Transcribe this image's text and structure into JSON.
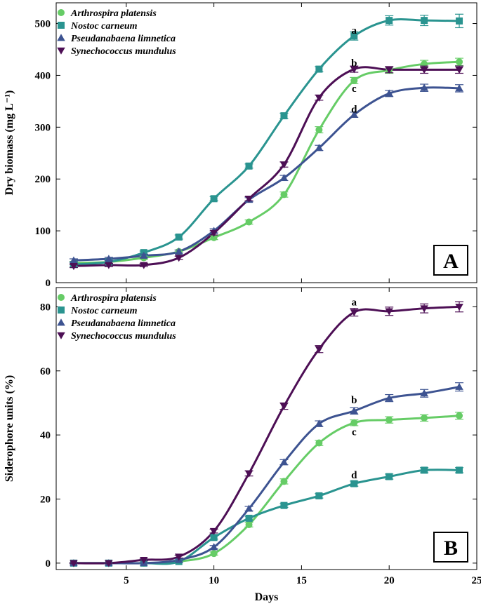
{
  "chart_data": [
    {
      "type": "line",
      "panel_label": "A",
      "ylabel": "Dry biomass (mg L⁻¹)",
      "xlabel": "",
      "xlim": [
        1,
        25
      ],
      "ylim": [
        0,
        540
      ],
      "yticks": [
        0,
        100,
        200,
        300,
        400,
        500
      ],
      "xticks": [
        5,
        10,
        15,
        20,
        25
      ],
      "show_xtick_labels": false,
      "legend_position": "top-left",
      "x": [
        2,
        4,
        6,
        8,
        10,
        12,
        14,
        16,
        18,
        20,
        22,
        24
      ],
      "series": [
        {
          "name": "Arthrospira platensis",
          "color": "#66cc66",
          "marker": "circle",
          "values": [
            38,
            40,
            48,
            60,
            87,
            117,
            170,
            295,
            390,
            410,
            422,
            426
          ],
          "errors": [
            3,
            3,
            3,
            3,
            4,
            4,
            5,
            6,
            6,
            6,
            7,
            7
          ]
        },
        {
          "name": "Nostoc carneum",
          "color": "#2a9490",
          "marker": "square",
          "values": [
            35,
            40,
            58,
            88,
            162,
            225,
            322,
            412,
            476,
            506,
            506,
            505
          ],
          "errors": [
            3,
            3,
            3,
            4,
            4,
            4,
            5,
            5,
            8,
            9,
            10,
            13
          ]
        },
        {
          "name": "Pseudanabaena limnetica",
          "color": "#3d5391",
          "marker": "triangle-up",
          "values": [
            43,
            46,
            52,
            60,
            100,
            160,
            202,
            260,
            324,
            365,
            376,
            375
          ],
          "errors": [
            3,
            3,
            3,
            3,
            4,
            4,
            5,
            5,
            5,
            6,
            7,
            7
          ]
        },
        {
          "name": "Synechococcus mundulus",
          "color": "#4d0f55",
          "marker": "triangle-down",
          "values": [
            32,
            34,
            34,
            48,
            96,
            162,
            228,
            357,
            412,
            411,
            411,
            411
          ],
          "errors": [
            3,
            3,
            3,
            3,
            4,
            4,
            5,
            5,
            6,
            6,
            7,
            7
          ]
        }
      ],
      "annotations": [
        {
          "text": "a",
          "x": 18,
          "y": 487
        },
        {
          "text": "b",
          "x": 18,
          "y": 424
        },
        {
          "text": "c",
          "x": 18,
          "y": 375
        },
        {
          "text": "d",
          "x": 18,
          "y": 335
        }
      ]
    },
    {
      "type": "line",
      "panel_label": "B",
      "ylabel": "Siderophore units (%)",
      "xlabel": "Days",
      "xlim": [
        1,
        25
      ],
      "ylim": [
        -2,
        86
      ],
      "yticks": [
        0,
        20,
        40,
        60,
        80
      ],
      "xticks": [
        5,
        10,
        15,
        20,
        25
      ],
      "show_xtick_labels": true,
      "legend_position": "top-left",
      "x": [
        2,
        4,
        6,
        8,
        10,
        12,
        14,
        16,
        18,
        20,
        22,
        24
      ],
      "series": [
        {
          "name": "Arthrospira platensis",
          "color": "#66cc66",
          "marker": "circle",
          "values": [
            0,
            0,
            0,
            0.5,
            3,
            12,
            25.5,
            37.5,
            43.8,
            44.7,
            45.3,
            46
          ],
          "errors": [
            0.2,
            0.2,
            0.2,
            0.3,
            0.5,
            0.7,
            0.8,
            0.8,
            0.9,
            1,
            1,
            1.1
          ]
        },
        {
          "name": "Nostoc carneum",
          "color": "#2a9490",
          "marker": "square",
          "values": [
            0,
            0,
            0,
            0.5,
            8,
            14,
            18,
            21,
            24.8,
            27,
            29,
            29
          ],
          "errors": [
            0.2,
            0.2,
            0.2,
            0.3,
            0.5,
            0.6,
            0.6,
            0.7,
            0.8,
            0.8,
            0.8,
            0.8
          ]
        },
        {
          "name": "Pseudanabaena limnetica",
          "color": "#3d5391",
          "marker": "triangle-up",
          "values": [
            0,
            0,
            0,
            1,
            5,
            17,
            31.5,
            43.5,
            47.5,
            51.5,
            53,
            55
          ],
          "errors": [
            0.2,
            0.2,
            0.2,
            0.3,
            0.5,
            0.7,
            0.8,
            0.9,
            1,
            1.1,
            1.2,
            1.3
          ]
        },
        {
          "name": "Synechococcus mundulus",
          "color": "#4d0f55",
          "marker": "triangle-down",
          "values": [
            0,
            0,
            1,
            2,
            10,
            28,
            49,
            66.8,
            78.3,
            78.6,
            79.5,
            80
          ],
          "errors": [
            0.2,
            0.2,
            0.3,
            0.4,
            0.6,
            0.8,
            1,
            1.1,
            1.2,
            1.3,
            1.4,
            1.6
          ]
        }
      ],
      "annotations": [
        {
          "text": "a",
          "x": 18,
          "y": 81.5
        },
        {
          "text": "b",
          "x": 18,
          "y": 51
        },
        {
          "text": "c",
          "x": 18,
          "y": 41
        },
        {
          "text": "d",
          "x": 18,
          "y": 27.5
        }
      ]
    }
  ]
}
